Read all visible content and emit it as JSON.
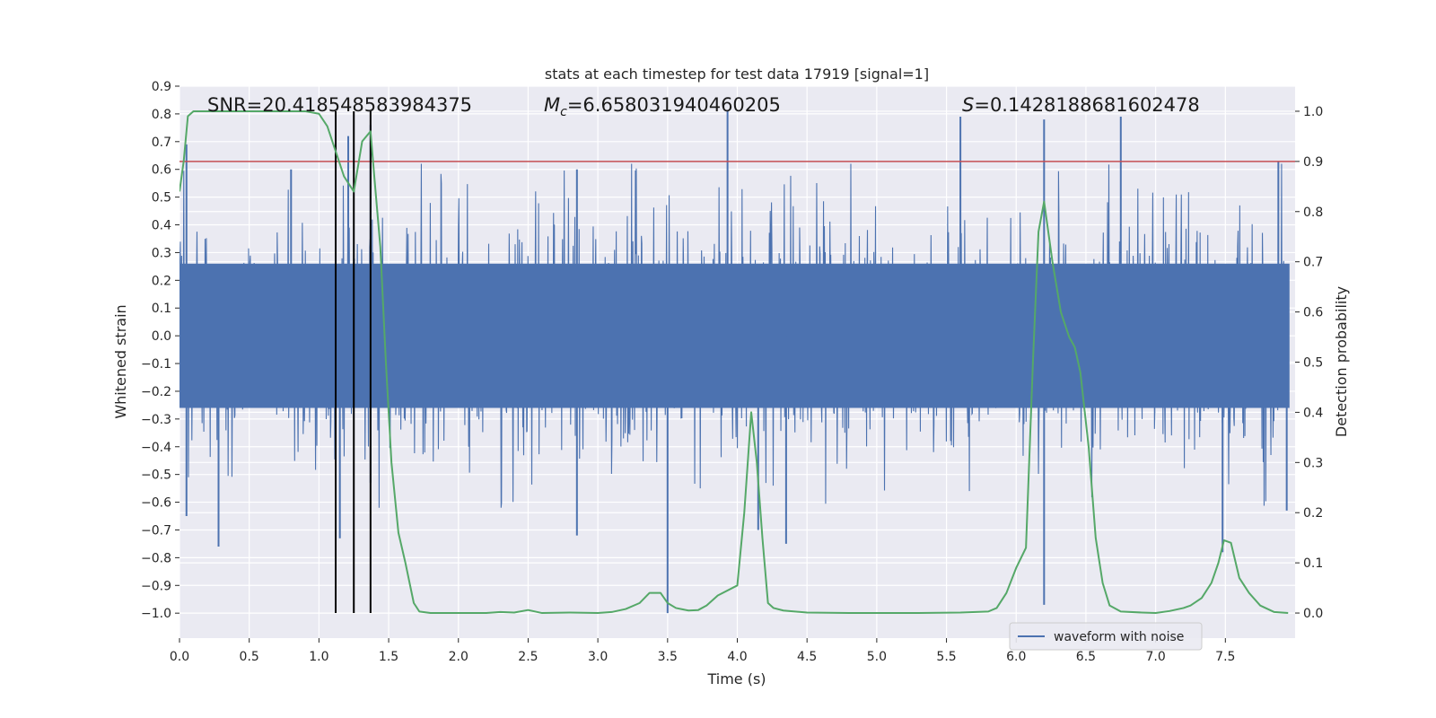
{
  "chart_data": {
    "type": "line",
    "title": "stats at each timestep for test data 17919 [signal=1]",
    "xlabel": "Time (s)",
    "ylabel_left": "Whitened strain",
    "ylabel_right": "Detection probability",
    "xlim": [
      0.0,
      8.0
    ],
    "ylim_left": [
      -1.09,
      0.9
    ],
    "ylim_right": [
      -0.05,
      1.05
    ],
    "x_ticks": [
      "0.0",
      "0.5",
      "1.0",
      "1.5",
      "2.0",
      "2.5",
      "3.0",
      "3.5",
      "4.0",
      "4.5",
      "5.0",
      "5.5",
      "6.0",
      "6.5",
      "7.0",
      "7.5"
    ],
    "y_left_ticks": [
      "0.9",
      "0.8",
      "0.7",
      "0.6",
      "0.5",
      "0.4",
      "0.3",
      "0.2",
      "0.1",
      "0.0",
      "−0.1",
      "−0.2",
      "−0.3",
      "−0.4",
      "−0.5",
      "−0.6",
      "−0.7",
      "−0.8",
      "−0.9",
      "−1.0"
    ],
    "y_right_ticks": [
      "0.0",
      "0.1",
      "0.2",
      "0.3",
      "0.4",
      "0.5",
      "0.6",
      "0.7",
      "0.8",
      "0.9",
      "1.0"
    ],
    "grid": true,
    "legend_position": "lower-right",
    "annotations": {
      "snr_label": "SNR=20.418548583984375",
      "mc_symbol": "M",
      "mc_subscript": "c",
      "mc_value": "=6.658031940460205",
      "s_symbol": "S",
      "s_value": "=0.1428188681602478"
    },
    "threshold": {
      "value": 0.9,
      "axis": "right",
      "color": "#c44e52"
    },
    "vlines": [
      1.12,
      1.25,
      1.37
    ],
    "series": [
      {
        "name": "waveform with noise",
        "color": "#4c72b0",
        "axis": "left",
        "style": "dense-noise",
        "band_approx": [
          -0.45,
          0.45
        ],
        "spike_peaks": [
          {
            "x": 0.05,
            "y": 0.69
          },
          {
            "x": 0.05,
            "y": -0.65
          },
          {
            "x": 0.28,
            "y": -0.76
          },
          {
            "x": 0.8,
            "y": 0.6
          },
          {
            "x": 1.12,
            "y": 0.7
          },
          {
            "x": 1.15,
            "y": -0.73
          },
          {
            "x": 1.21,
            "y": 0.72
          },
          {
            "x": 1.37,
            "y": 0.76
          },
          {
            "x": 1.37,
            "y": -0.53
          },
          {
            "x": 2.85,
            "y": 0.6
          },
          {
            "x": 2.85,
            "y": -0.72
          },
          {
            "x": 3.5,
            "y": -1.0
          },
          {
            "x": 3.93,
            "y": 0.81
          },
          {
            "x": 4.15,
            "y": -0.7
          },
          {
            "x": 4.35,
            "y": -0.75
          },
          {
            "x": 5.6,
            "y": 0.79
          },
          {
            "x": 6.2,
            "y": 0.78
          },
          {
            "x": 6.2,
            "y": -0.97
          },
          {
            "x": 6.75,
            "y": 0.79
          },
          {
            "x": 7.48,
            "y": -0.78
          },
          {
            "x": 7.88,
            "y": 0.63
          },
          {
            "x": 7.94,
            "y": -0.63
          }
        ]
      },
      {
        "name": "",
        "color": "#55a868",
        "axis": "right",
        "style": "line",
        "x": [
          0.0,
          0.03,
          0.06,
          0.1,
          0.2,
          0.3,
          0.5,
          0.7,
          0.9,
          1.0,
          1.06,
          1.12,
          1.18,
          1.25,
          1.31,
          1.37,
          1.4,
          1.44,
          1.48,
          1.52,
          1.57,
          1.62,
          1.68,
          1.72,
          1.8,
          2.0,
          2.2,
          2.3,
          2.4,
          2.5,
          2.6,
          2.8,
          3.0,
          3.1,
          3.2,
          3.3,
          3.37,
          3.45,
          3.5,
          3.56,
          3.65,
          3.72,
          3.78,
          3.86,
          4.0,
          4.05,
          4.1,
          4.14,
          4.18,
          4.22,
          4.26,
          4.33,
          4.5,
          4.8,
          5.0,
          5.3,
          5.6,
          5.8,
          5.86,
          5.93,
          6.0,
          6.07,
          6.12,
          6.16,
          6.2,
          6.26,
          6.32,
          6.38,
          6.42,
          6.46,
          6.52,
          6.57,
          6.62,
          6.67,
          6.75,
          6.9,
          7.0,
          7.1,
          7.2,
          7.25,
          7.33,
          7.4,
          7.45,
          7.49,
          7.54,
          7.6,
          7.67,
          7.75,
          7.85,
          7.95
        ],
        "y": [
          0.84,
          0.9,
          0.99,
          1.0,
          1.0,
          1.0,
          1.0,
          1.0,
          1.0,
          0.995,
          0.97,
          0.92,
          0.87,
          0.84,
          0.94,
          0.96,
          0.86,
          0.73,
          0.5,
          0.3,
          0.16,
          0.1,
          0.02,
          0.003,
          0.0,
          0.0,
          0.0,
          0.002,
          0.001,
          0.006,
          0.0,
          0.001,
          0.0,
          0.002,
          0.008,
          0.02,
          0.04,
          0.04,
          0.02,
          0.01,
          0.005,
          0.006,
          0.015,
          0.035,
          0.055,
          0.2,
          0.4,
          0.3,
          0.15,
          0.02,
          0.01,
          0.005,
          0.001,
          0.0,
          0.0,
          0.0,
          0.001,
          0.003,
          0.01,
          0.04,
          0.09,
          0.13,
          0.5,
          0.76,
          0.82,
          0.7,
          0.6,
          0.55,
          0.53,
          0.48,
          0.33,
          0.15,
          0.06,
          0.015,
          0.003,
          0.001,
          0.0,
          0.004,
          0.01,
          0.015,
          0.03,
          0.06,
          0.1,
          0.145,
          0.14,
          0.07,
          0.04,
          0.015,
          0.002,
          0.0
        ]
      }
    ]
  }
}
